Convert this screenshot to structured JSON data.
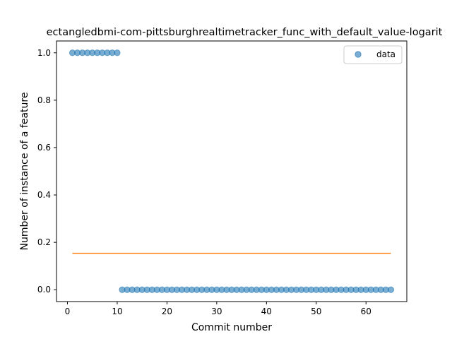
{
  "chart_data": {
    "type": "scatter",
    "title": "ectangledbmi-com-pittsburghrealtimetracker_func_with_default_value-logarit",
    "xlabel": "Commit number",
    "ylabel": "Number of instance of a feature",
    "xlim": [
      -2.2,
      68.2
    ],
    "ylim": [
      -0.05,
      1.05
    ],
    "xticks": [
      0,
      10,
      20,
      30,
      40,
      50,
      60
    ],
    "yticks": [
      0.0,
      0.2,
      0.4,
      0.6,
      0.8,
      1.0
    ],
    "xtick_labels": [
      "0",
      "10",
      "20",
      "30",
      "40",
      "50",
      "60"
    ],
    "ytick_labels": [
      "0.0",
      "0.2",
      "0.4",
      "0.6",
      "0.8",
      "1.0"
    ],
    "legend": {
      "position": "top-right",
      "entries": [
        "data"
      ]
    },
    "series": [
      {
        "name": "data",
        "kind": "scatter",
        "color": "#1f77b4",
        "x": [
          1,
          2,
          3,
          4,
          5,
          6,
          7,
          8,
          9,
          10,
          11,
          12,
          13,
          14,
          15,
          16,
          17,
          18,
          19,
          20,
          21,
          22,
          23,
          24,
          25,
          26,
          27,
          28,
          29,
          30,
          31,
          32,
          33,
          34,
          35,
          36,
          37,
          38,
          39,
          40,
          41,
          42,
          43,
          44,
          45,
          46,
          47,
          48,
          49,
          50,
          51,
          52,
          53,
          54,
          55,
          56,
          57,
          58,
          59,
          60,
          61,
          62,
          63,
          64,
          65
        ],
        "y": [
          1,
          1,
          1,
          1,
          1,
          1,
          1,
          1,
          1,
          1,
          0,
          0,
          0,
          0,
          0,
          0,
          0,
          0,
          0,
          0,
          0,
          0,
          0,
          0,
          0,
          0,
          0,
          0,
          0,
          0,
          0,
          0,
          0,
          0,
          0,
          0,
          0,
          0,
          0,
          0,
          0,
          0,
          0,
          0,
          0,
          0,
          0,
          0,
          0,
          0,
          0,
          0,
          0,
          0,
          0,
          0,
          0,
          0,
          0,
          0,
          0,
          0,
          0,
          0,
          0
        ]
      },
      {
        "kind": "line",
        "color": "#ff7f0e",
        "x": [
          1,
          65
        ],
        "y": [
          0.154,
          0.154
        ]
      }
    ]
  }
}
